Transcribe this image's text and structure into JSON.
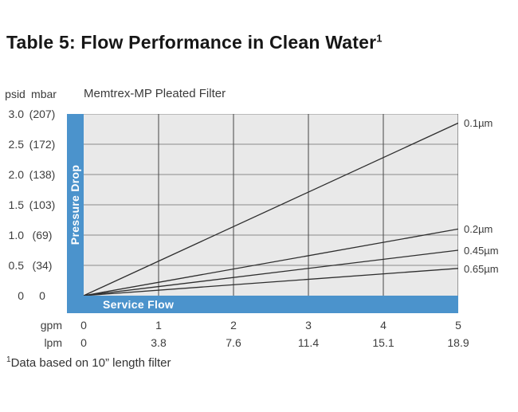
{
  "page": {
    "title_text": "Table 5: Flow Performance in Clean Water",
    "title_sup": "1",
    "footnote_sup": "1",
    "footnote_text": "Data based on 10” length filter"
  },
  "chart_data": {
    "type": "line",
    "title": "Memtrex-MP Pleated Filter",
    "xlabel": "Service Flow",
    "ylabel": "Pressure Drop",
    "x_units": [
      "gpm",
      "lpm"
    ],
    "y_units": [
      "psid",
      "mbar"
    ],
    "xlim": [
      0,
      5
    ],
    "ylim": [
      0,
      3
    ],
    "grid": true,
    "legend_position": "right",
    "y_ticks": {
      "psid": [
        "3.0",
        "2.5",
        "2.0",
        "1.5",
        "1.0",
        "0.5",
        "0"
      ],
      "mbar": [
        "(207)",
        "(172)",
        "(138)",
        "(103)",
        "(69)",
        "(34)",
        "0"
      ]
    },
    "x_ticks": {
      "gpm": [
        "0",
        "1",
        "2",
        "3",
        "4",
        "5"
      ],
      "lpm": [
        "0",
        "3.8",
        "7.6",
        "11.4",
        "15.1",
        "18.9"
      ]
    },
    "series": [
      {
        "name": "0.1µm",
        "x": [
          0,
          5
        ],
        "y": [
          0,
          2.85
        ]
      },
      {
        "name": "0.2µm",
        "x": [
          0,
          5
        ],
        "y": [
          0,
          1.1
        ]
      },
      {
        "name": "0.45µm",
        "x": [
          0,
          5
        ],
        "y": [
          0,
          0.75
        ]
      },
      {
        "name": "0.65µm",
        "x": [
          0,
          5
        ],
        "y": [
          0,
          0.45
        ]
      }
    ],
    "colors": {
      "accent_blue": "#4b93cc",
      "plot_bg": "#e9e9e9",
      "line": "#2e2e2e",
      "grid_h": "#8c8c8c",
      "grid_v": "#454545"
    }
  }
}
